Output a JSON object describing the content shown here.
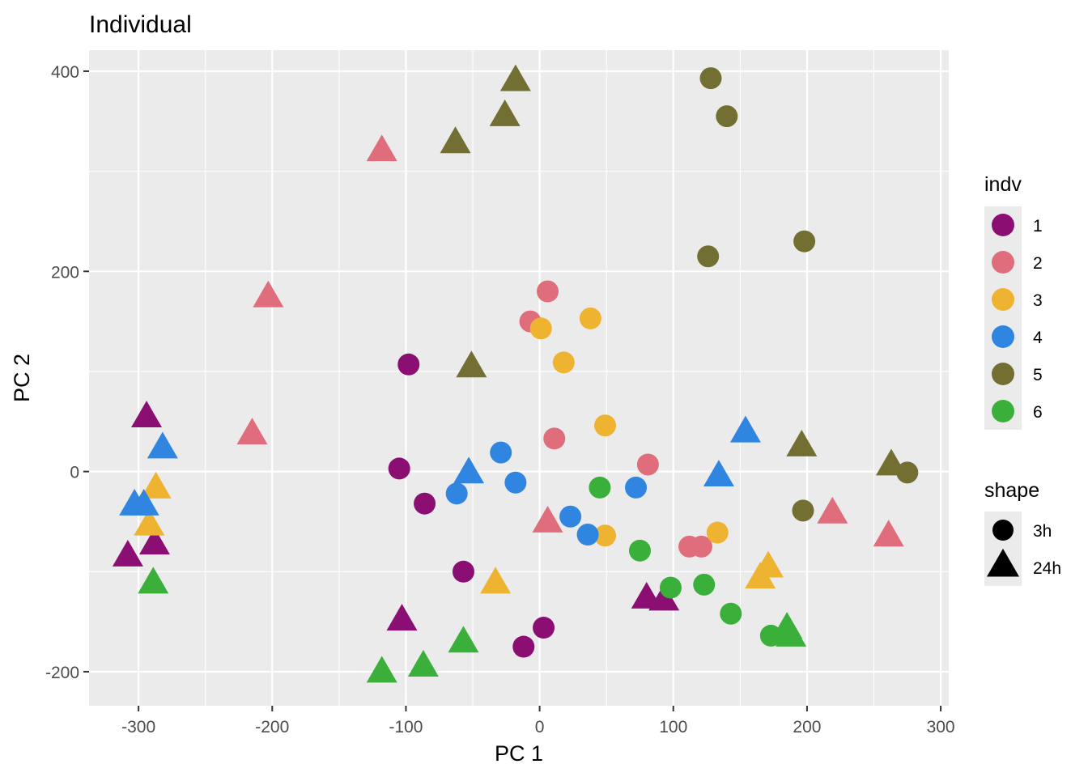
{
  "chart_data": {
    "type": "scatter",
    "title": "Individual",
    "xlabel": "PC 1",
    "ylabel": "PC 2",
    "xlim": [
      -337,
      306
    ],
    "ylim": [
      -234,
      421
    ],
    "x_ticks": [
      -300,
      -200,
      -100,
      0,
      100,
      200,
      300
    ],
    "y_ticks": [
      -200,
      0,
      200,
      400
    ],
    "x_tick_labels": [
      "-300",
      "-200",
      "-100",
      "0",
      "100",
      "200",
      "300"
    ],
    "y_tick_labels": [
      "-200",
      "0",
      "200",
      "400"
    ],
    "grid": true,
    "panel_background": "#ebebeb",
    "legend_position": "right",
    "legend_color": {
      "title": "indv",
      "items": [
        {
          "label": "1",
          "color": "#8b0e72"
        },
        {
          "label": "2",
          "color": "#df6d7c"
        },
        {
          "label": "3",
          "color": "#eeb330"
        },
        {
          "label": "4",
          "color": "#2f85e0"
        },
        {
          "label": "5",
          "color": "#736f33"
        },
        {
          "label": "6",
          "color": "#3aaf3a"
        }
      ]
    },
    "legend_shape": {
      "title": "shape",
      "items": [
        {
          "label": "3h",
          "shape": "circle"
        },
        {
          "label": "24h",
          "shape": "triangle"
        }
      ]
    },
    "points": [
      {
        "x": -98,
        "y": 107,
        "indv": "1",
        "shape": "3h"
      },
      {
        "x": -105,
        "y": 3,
        "indv": "1",
        "shape": "3h"
      },
      {
        "x": -86,
        "y": -32,
        "indv": "1",
        "shape": "3h"
      },
      {
        "x": -57,
        "y": -100,
        "indv": "1",
        "shape": "3h"
      },
      {
        "x": 3,
        "y": -156,
        "indv": "1",
        "shape": "3h"
      },
      {
        "x": -12,
        "y": -175,
        "indv": "1",
        "shape": "3h"
      },
      {
        "x": -294,
        "y": 53,
        "indv": "1",
        "shape": "24h"
      },
      {
        "x": -288,
        "y": -74,
        "indv": "1",
        "shape": "24h"
      },
      {
        "x": -308,
        "y": -86,
        "indv": "1",
        "shape": "24h"
      },
      {
        "x": -103,
        "y": -150,
        "indv": "1",
        "shape": "24h"
      },
      {
        "x": 80,
        "y": -128,
        "indv": "1",
        "shape": "24h"
      },
      {
        "x": 93,
        "y": -130,
        "indv": "1",
        "shape": "24h"
      },
      {
        "x": 6,
        "y": 180,
        "indv": "2",
        "shape": "3h"
      },
      {
        "x": -7,
        "y": 150,
        "indv": "2",
        "shape": "3h"
      },
      {
        "x": 11,
        "y": 33,
        "indv": "2",
        "shape": "3h"
      },
      {
        "x": 81,
        "y": 7,
        "indv": "2",
        "shape": "3h"
      },
      {
        "x": 112,
        "y": -75,
        "indv": "2",
        "shape": "3h"
      },
      {
        "x": 121,
        "y": -75,
        "indv": "2",
        "shape": "3h"
      },
      {
        "x": -118,
        "y": 319,
        "indv": "2",
        "shape": "24h"
      },
      {
        "x": -203,
        "y": 173,
        "indv": "2",
        "shape": "24h"
      },
      {
        "x": -215,
        "y": 36,
        "indv": "2",
        "shape": "24h"
      },
      {
        "x": 6,
        "y": -52,
        "indv": "2",
        "shape": "24h"
      },
      {
        "x": 219,
        "y": -43,
        "indv": "2",
        "shape": "24h"
      },
      {
        "x": 261,
        "y": -66,
        "indv": "2",
        "shape": "24h"
      },
      {
        "x": 38,
        "y": 153,
        "indv": "3",
        "shape": "3h"
      },
      {
        "x": 1,
        "y": 143,
        "indv": "3",
        "shape": "3h"
      },
      {
        "x": 18,
        "y": 109,
        "indv": "3",
        "shape": "3h"
      },
      {
        "x": 49,
        "y": 46,
        "indv": "3",
        "shape": "3h"
      },
      {
        "x": 49,
        "y": -64,
        "indv": "3",
        "shape": "3h"
      },
      {
        "x": 133,
        "y": -61,
        "indv": "3",
        "shape": "3h"
      },
      {
        "x": -287,
        "y": -18,
        "indv": "3",
        "shape": "24h"
      },
      {
        "x": -292,
        "y": -55,
        "indv": "3",
        "shape": "24h"
      },
      {
        "x": -33,
        "y": -113,
        "indv": "3",
        "shape": "24h"
      },
      {
        "x": 171,
        "y": -97,
        "indv": "3",
        "shape": "24h"
      },
      {
        "x": 165,
        "y": -108,
        "indv": "3",
        "shape": "24h"
      },
      {
        "x": -29,
        "y": 19,
        "indv": "4",
        "shape": "3h"
      },
      {
        "x": -18,
        "y": -11,
        "indv": "4",
        "shape": "3h"
      },
      {
        "x": -62,
        "y": -22,
        "indv": "4",
        "shape": "3h"
      },
      {
        "x": 23,
        "y": -45,
        "indv": "4",
        "shape": "3h"
      },
      {
        "x": 36,
        "y": -63,
        "indv": "4",
        "shape": "3h"
      },
      {
        "x": 72,
        "y": -16,
        "indv": "4",
        "shape": "3h"
      },
      {
        "x": -282,
        "y": 22,
        "indv": "4",
        "shape": "24h"
      },
      {
        "x": -303,
        "y": -35,
        "indv": "4",
        "shape": "24h"
      },
      {
        "x": -296,
        "y": -35,
        "indv": "4",
        "shape": "24h"
      },
      {
        "x": -53,
        "y": -3,
        "indv": "4",
        "shape": "24h"
      },
      {
        "x": 134,
        "y": -6,
        "indv": "4",
        "shape": "24h"
      },
      {
        "x": 154,
        "y": 38,
        "indv": "4",
        "shape": "24h"
      },
      {
        "x": 128,
        "y": 393,
        "indv": "5",
        "shape": "3h"
      },
      {
        "x": 140,
        "y": 355,
        "indv": "5",
        "shape": "3h"
      },
      {
        "x": 126,
        "y": 215,
        "indv": "5",
        "shape": "3h"
      },
      {
        "x": 198,
        "y": 230,
        "indv": "5",
        "shape": "3h"
      },
      {
        "x": 197,
        "y": -39,
        "indv": "5",
        "shape": "3h"
      },
      {
        "x": 275,
        "y": -1,
        "indv": "5",
        "shape": "3h"
      },
      {
        "x": -18,
        "y": 389,
        "indv": "5",
        "shape": "24h"
      },
      {
        "x": -26,
        "y": 354,
        "indv": "5",
        "shape": "24h"
      },
      {
        "x": -63,
        "y": 327,
        "indv": "5",
        "shape": "24h"
      },
      {
        "x": -51,
        "y": 103,
        "indv": "5",
        "shape": "24h"
      },
      {
        "x": 196,
        "y": 24,
        "indv": "5",
        "shape": "24h"
      },
      {
        "x": 263,
        "y": 5,
        "indv": "5",
        "shape": "24h"
      },
      {
        "x": 45,
        "y": -16,
        "indv": "6",
        "shape": "3h"
      },
      {
        "x": 75,
        "y": -79,
        "indv": "6",
        "shape": "3h"
      },
      {
        "x": 98,
        "y": -116,
        "indv": "6",
        "shape": "3h"
      },
      {
        "x": 123,
        "y": -113,
        "indv": "6",
        "shape": "3h"
      },
      {
        "x": 143,
        "y": -142,
        "indv": "6",
        "shape": "3h"
      },
      {
        "x": 173,
        "y": -164,
        "indv": "6",
        "shape": "3h"
      },
      {
        "x": -289,
        "y": -113,
        "indv": "6",
        "shape": "24h"
      },
      {
        "x": -118,
        "y": -202,
        "indv": "6",
        "shape": "24h"
      },
      {
        "x": -87,
        "y": -196,
        "indv": "6",
        "shape": "24h"
      },
      {
        "x": -57,
        "y": -172,
        "indv": "6",
        "shape": "24h"
      },
      {
        "x": 185,
        "y": -158,
        "indv": "6",
        "shape": "24h"
      },
      {
        "x": 188,
        "y": -166,
        "indv": "6",
        "shape": "24h"
      }
    ]
  }
}
